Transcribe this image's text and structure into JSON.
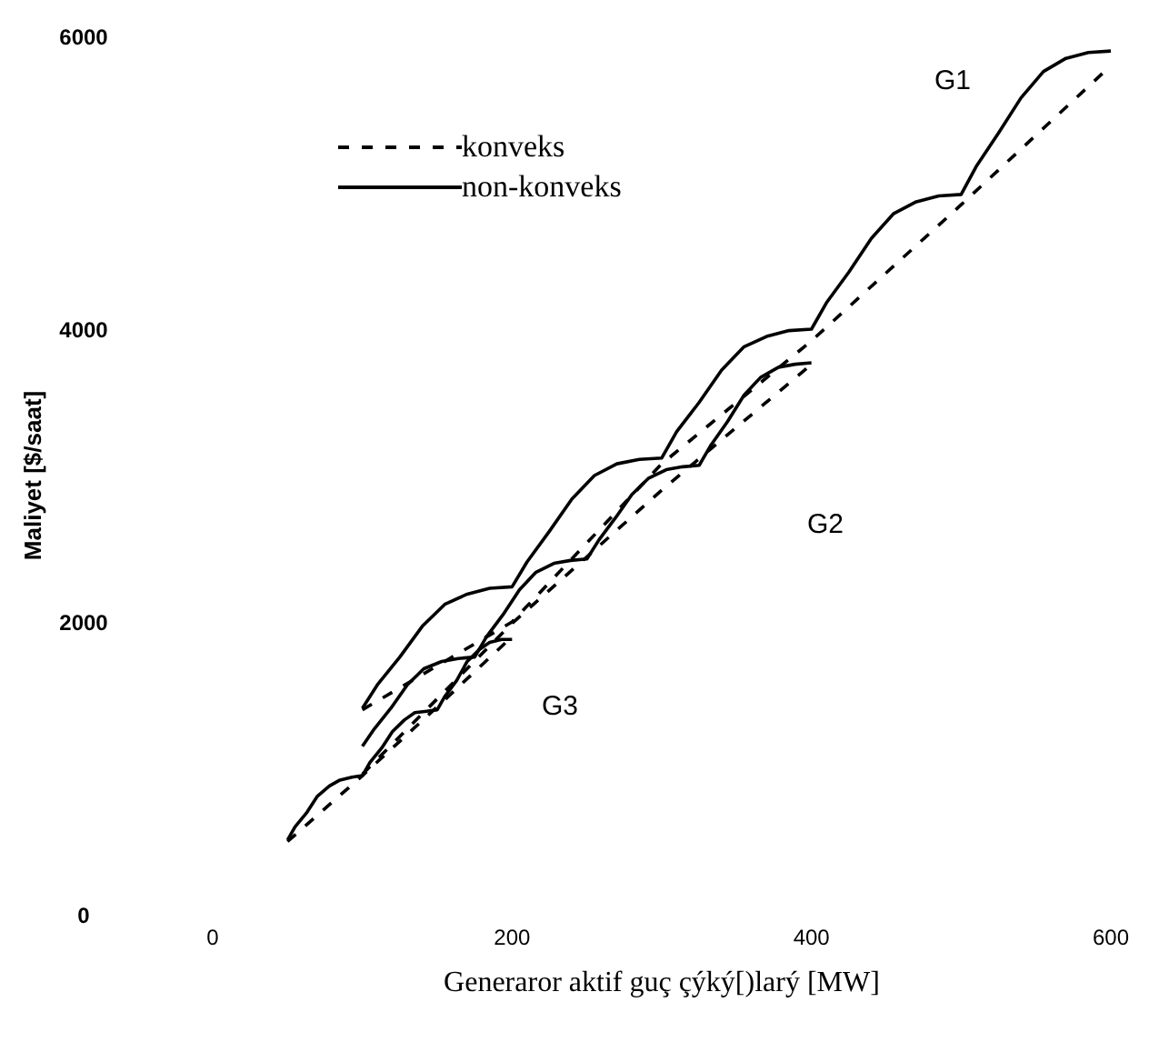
{
  "chart_data": {
    "type": "line",
    "xlabel": "Generaror aktif guç çýký[)larý [MW]",
    "ylabel": "Maliyet [$/saat]",
    "xlim": [
      0,
      600
    ],
    "ylim": [
      0,
      6000
    ],
    "xticks": [
      0,
      200,
      400,
      600
    ],
    "yticks": [
      0,
      2000,
      4000,
      6000
    ],
    "legend": "top left",
    "series": [
      {
        "name": "konveks",
        "color": "#000000",
        "line_style": "dashed",
        "x": [
          100,
          200,
          300,
          400,
          500,
          600
        ],
        "values": [
          1400,
          2000,
          3080,
          3920,
          4850,
          5800
        ]
      },
      {
        "name": "non-konveks",
        "color": "#000000",
        "line_style": "solid",
        "x": [
          100,
          110,
          125,
          140,
          155,
          170,
          185,
          200,
          210,
          225,
          240,
          255,
          270,
          285,
          300,
          310,
          325,
          340,
          355,
          370,
          385,
          400,
          410,
          425,
          440,
          455,
          470,
          485,
          500,
          510,
          525,
          540,
          555,
          570,
          585,
          600
        ],
        "values": [
          1410,
          1570,
          1760,
          1970,
          2120,
          2190,
          2230,
          2240,
          2410,
          2620,
          2840,
          3000,
          3080,
          3110,
          3120,
          3300,
          3500,
          3720,
          3880,
          3950,
          3990,
          4000,
          4180,
          4390,
          4620,
          4790,
          4870,
          4910,
          4920,
          5110,
          5340,
          5580,
          5760,
          5850,
          5890,
          5900
        ]
      },
      {
        "color": "#000000",
        "line_style": "dashed",
        "x": [
          100,
          200,
          300,
          400
        ],
        "values": [
          960,
          1990,
          2900,
          3760
        ]
      },
      {
        "color": "#000000",
        "line_style": "solid",
        "x": [
          100,
          108,
          119,
          130,
          141,
          153,
          164,
          175,
          183,
          194,
          205,
          216,
          228,
          239,
          250,
          258,
          269,
          280,
          291,
          303,
          314,
          325,
          333,
          344,
          355,
          366,
          378,
          389,
          400
        ],
        "values": [
          1150,
          1270,
          1410,
          1570,
          1680,
          1730,
          1750,
          1760,
          1900,
          2050,
          2220,
          2340,
          2400,
          2420,
          2430,
          2560,
          2710,
          2870,
          2980,
          3040,
          3060,
          3070,
          3210,
          3370,
          3550,
          3670,
          3740,
          3760,
          3770
        ]
      },
      {
        "color": "#000000",
        "line_style": "dashed",
        "x": [
          50,
          100,
          150,
          200
        ],
        "values": [
          500,
          950,
          1420,
          1900
        ]
      },
      {
        "color": "#000000",
        "line_style": "solid",
        "x": [
          50,
          55,
          63,
          70,
          78,
          85,
          93,
          100,
          105,
          113,
          120,
          128,
          135,
          143,
          150,
          155,
          163,
          170,
          178,
          185,
          193,
          200
        ],
        "values": [
          510,
          600,
          700,
          810,
          880,
          920,
          940,
          950,
          1040,
          1140,
          1250,
          1330,
          1380,
          1390,
          1400,
          1490,
          1600,
          1730,
          1810,
          1860,
          1880,
          1880
        ]
      }
    ],
    "annotations": [
      "G1",
      "G2",
      "G3"
    ]
  }
}
